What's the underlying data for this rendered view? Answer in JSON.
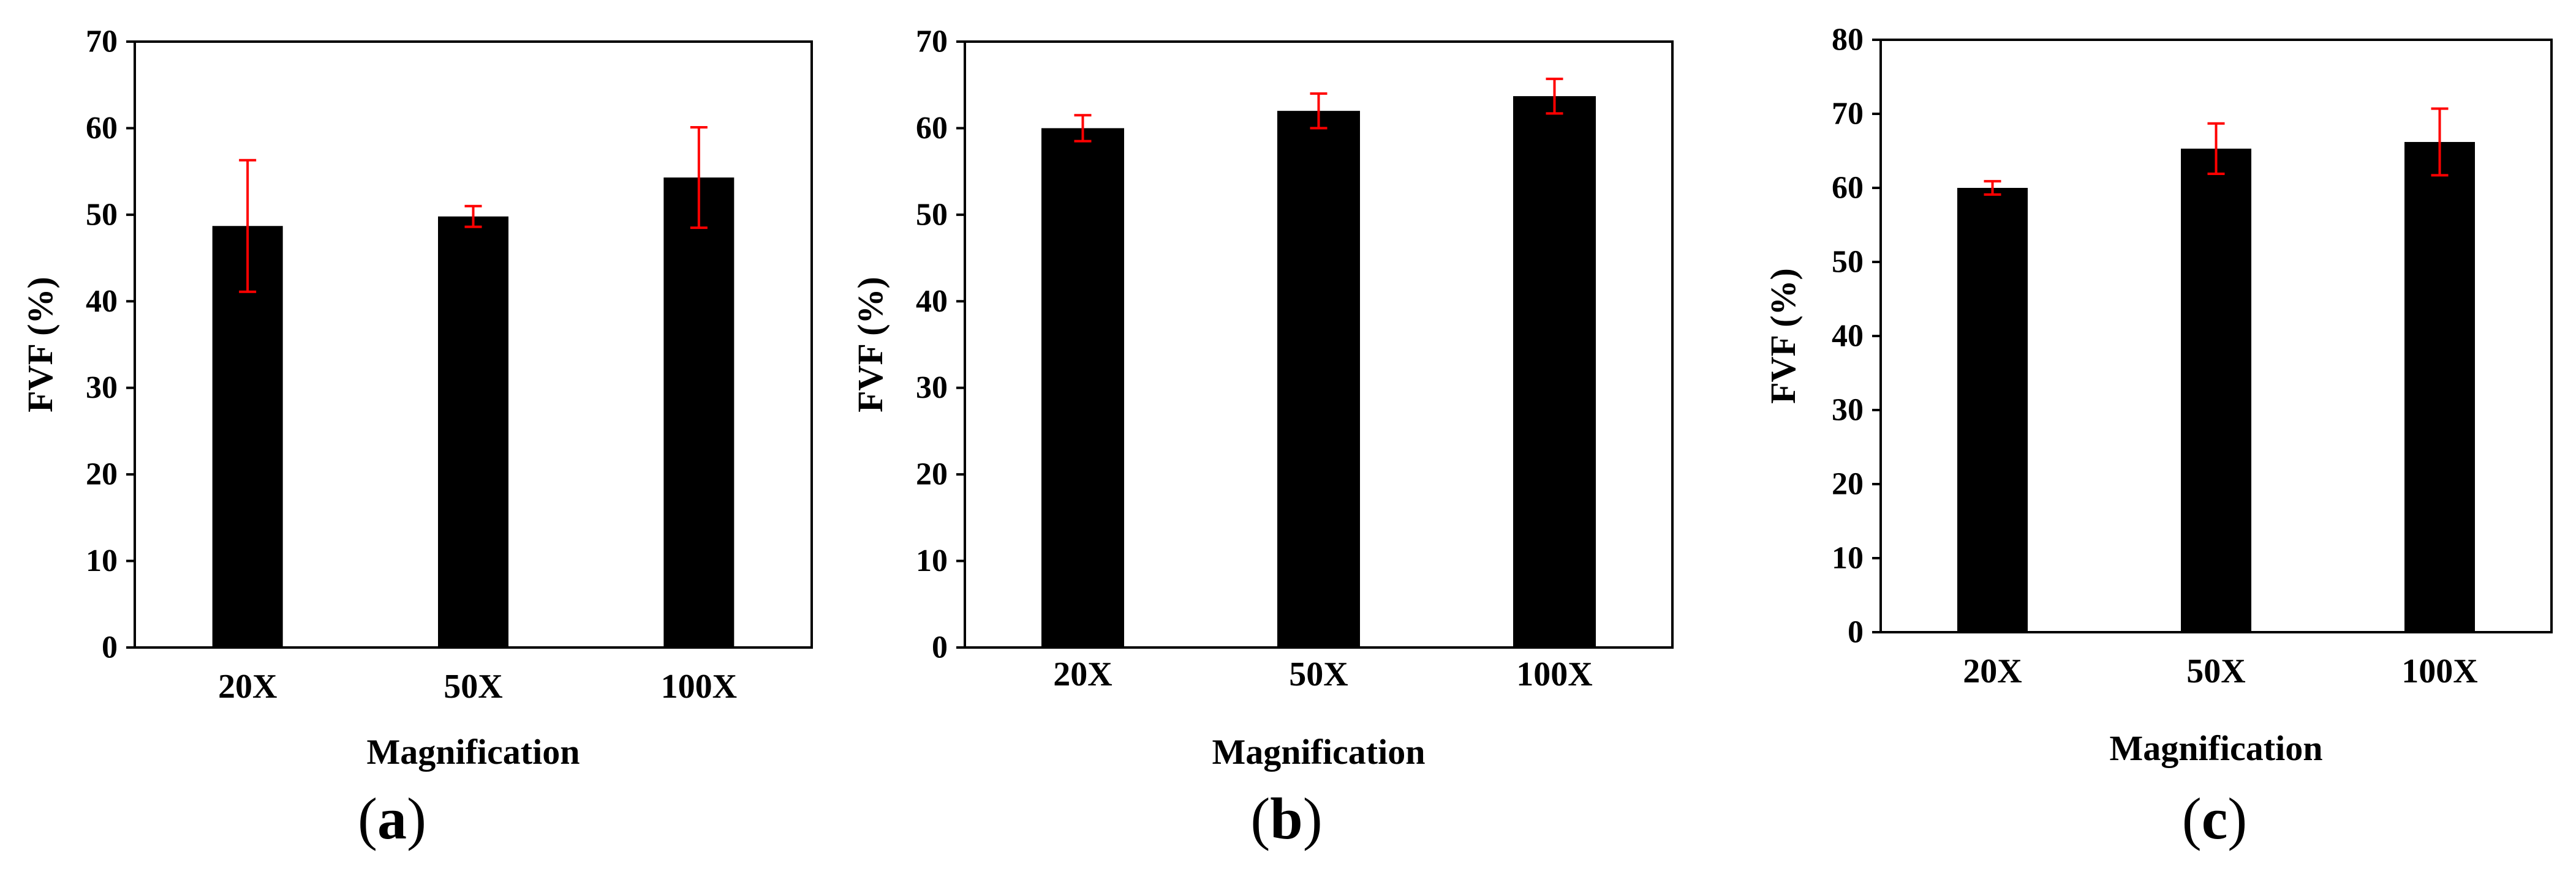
{
  "figure": {
    "panels": [
      "(a)",
      "(b)",
      "(c)"
    ]
  },
  "chart_data": [
    {
      "type": "bar",
      "panel_label": "(a)",
      "panel_letter": "a",
      "categories": [
        "20X",
        "50X",
        "100X"
      ],
      "values": [
        48.7,
        49.8,
        54.3
      ],
      "error": [
        7.6,
        1.2,
        5.8
      ],
      "xlabel": "Magnification",
      "ylabel": "FVF (%)",
      "ylim": [
        0,
        70
      ],
      "yticks": [
        0,
        10,
        20,
        30,
        40,
        50,
        60,
        70
      ],
      "bar_color": "#000000",
      "error_color": "#ff0000",
      "grid": false,
      "legend": "none"
    },
    {
      "type": "bar",
      "panel_label": "(b)",
      "panel_letter": "b",
      "categories": [
        "20X",
        "50X",
        "100X"
      ],
      "values": [
        60.0,
        62.0,
        63.7
      ],
      "error": [
        1.5,
        2.0,
        2.0
      ],
      "xlabel": "Magnification",
      "ylabel": "FVF (%)",
      "ylim": [
        0,
        70
      ],
      "yticks": [
        0,
        10,
        20,
        30,
        40,
        50,
        60,
        70
      ],
      "bar_color": "#000000",
      "error_color": "#ff0000",
      "grid": false,
      "legend": "none"
    },
    {
      "type": "bar",
      "panel_label": "(c)",
      "panel_letter": "c",
      "categories": [
        "20X",
        "50X",
        "100X"
      ],
      "values": [
        60.0,
        65.3,
        66.2
      ],
      "error": [
        0.9,
        3.4,
        4.5
      ],
      "xlabel": "Magnification",
      "ylabel": "FVF (%)",
      "ylim": [
        0,
        80
      ],
      "yticks": [
        0,
        10,
        20,
        30,
        40,
        50,
        60,
        70,
        80
      ],
      "bar_color": "#000000",
      "error_color": "#ff0000",
      "grid": false,
      "legend": "none"
    }
  ]
}
